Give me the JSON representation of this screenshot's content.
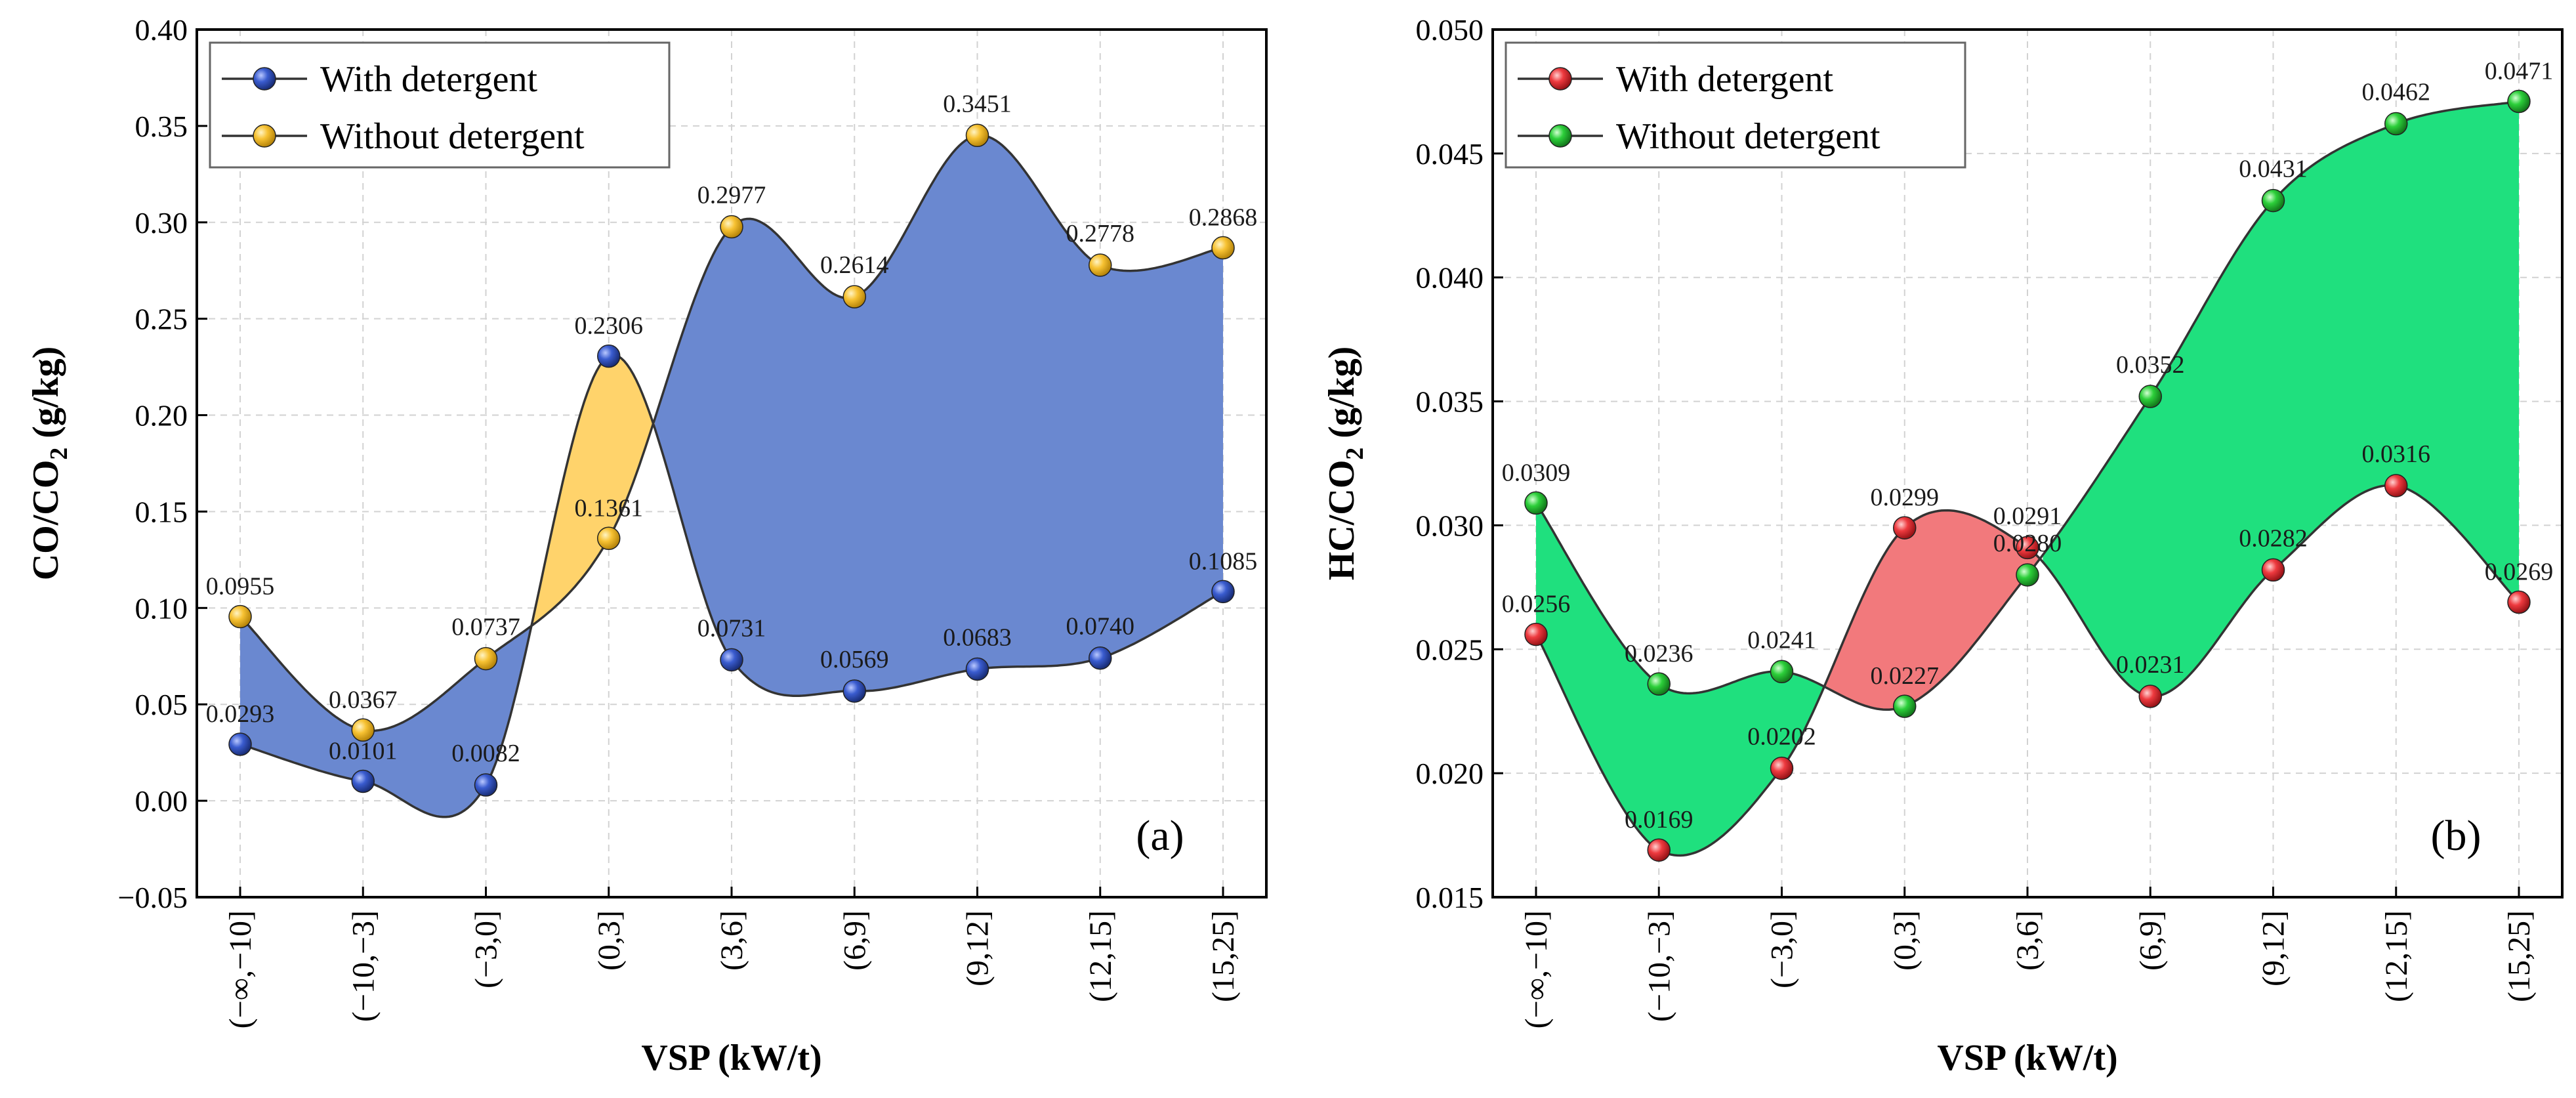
{
  "categories": [
    "(−∞,−10]",
    "(−10,−3]",
    "(−3,0]",
    "(0,3]",
    "(3,6]",
    "(6,9]",
    "(9,12]",
    "(12,15]",
    "(15,25]"
  ],
  "chart_data": [
    {
      "type": "line",
      "panel": "(a)",
      "xlabel": "VSP (kW/t)",
      "ylabel": {
        "main": "CO/CO",
        "sub": "2",
        "tail": " (g/kg)"
      },
      "ylim": [
        -0.05,
        0.4
      ],
      "yticks": [
        "−0.05",
        "0.00",
        "0.05",
        "0.10",
        "0.15",
        "0.20",
        "0.25",
        "0.30",
        "0.35",
        "0.40"
      ],
      "ytick_values": [
        -0.05,
        0.0,
        0.05,
        0.1,
        0.15,
        0.2,
        0.25,
        0.3,
        0.35,
        0.4
      ],
      "grid": true,
      "legend_position": "top-left",
      "series": [
        {
          "name": "With detergent",
          "values": [
            0.0293,
            0.0101,
            0.0082,
            0.2306,
            0.0731,
            0.0569,
            0.0683,
            0.074,
            0.1085
          ],
          "labels": [
            "0.0293",
            "0.0101",
            "0.0082",
            "0.2306",
            "0.0731",
            "0.0569",
            "0.0683",
            "0.0740",
            "0.1085"
          ],
          "marker_color": "#2f4fb5"
        },
        {
          "name": "Without detergent",
          "values": [
            0.0955,
            0.0367,
            0.0737,
            0.1361,
            0.2977,
            0.2614,
            0.3451,
            0.2778,
            0.2868
          ],
          "labels": [
            "0.0955",
            "0.0367",
            "0.0737",
            "0.1361",
            "0.2977",
            "0.2614",
            "0.3451",
            "0.2778",
            "0.2868"
          ],
          "marker_color": "#f6be2c"
        }
      ],
      "fill_colors": {
        "upper_is_series_b": "#6a88d0",
        "upper_is_series_a": "#ffd36b"
      }
    },
    {
      "type": "line",
      "panel": "(b)",
      "xlabel": "VSP (kW/t)",
      "ylabel": {
        "main": "HC/CO",
        "sub": "2",
        "tail": " (g/kg)"
      },
      "ylim": [
        0.015,
        0.05
      ],
      "yticks": [
        "0.015",
        "0.020",
        "0.025",
        "0.030",
        "0.035",
        "0.040",
        "0.045",
        "0.050"
      ],
      "ytick_values": [
        0.015,
        0.02,
        0.025,
        0.03,
        0.035,
        0.04,
        0.045,
        0.05
      ],
      "grid": true,
      "legend_position": "top-left",
      "series": [
        {
          "name": "With detergent",
          "values": [
            0.0256,
            0.0169,
            0.0202,
            0.0299,
            0.0291,
            0.0231,
            0.0282,
            0.0316,
            0.0269
          ],
          "labels": [
            "0.0256",
            "0.0169",
            "0.0202",
            "0.0299",
            "0.0291",
            "0.0231",
            "0.0282",
            "0.0316",
            "0.0269"
          ],
          "marker_color": "#e8343a"
        },
        {
          "name": "Without detergent",
          "values": [
            0.0309,
            0.0236,
            0.0241,
            0.0227,
            0.028,
            0.0352,
            0.0431,
            0.0462,
            0.0471
          ],
          "labels": [
            "0.0309",
            "0.0236",
            "0.0241",
            "0.0227",
            "0.0280",
            "0.0352",
            "0.0431",
            "0.0462",
            "0.0471"
          ],
          "marker_color": "#23c832"
        }
      ],
      "fill_colors": {
        "upper_is_series_b": "#1fe07e",
        "upper_is_series_a": "#f2797c"
      }
    }
  ]
}
